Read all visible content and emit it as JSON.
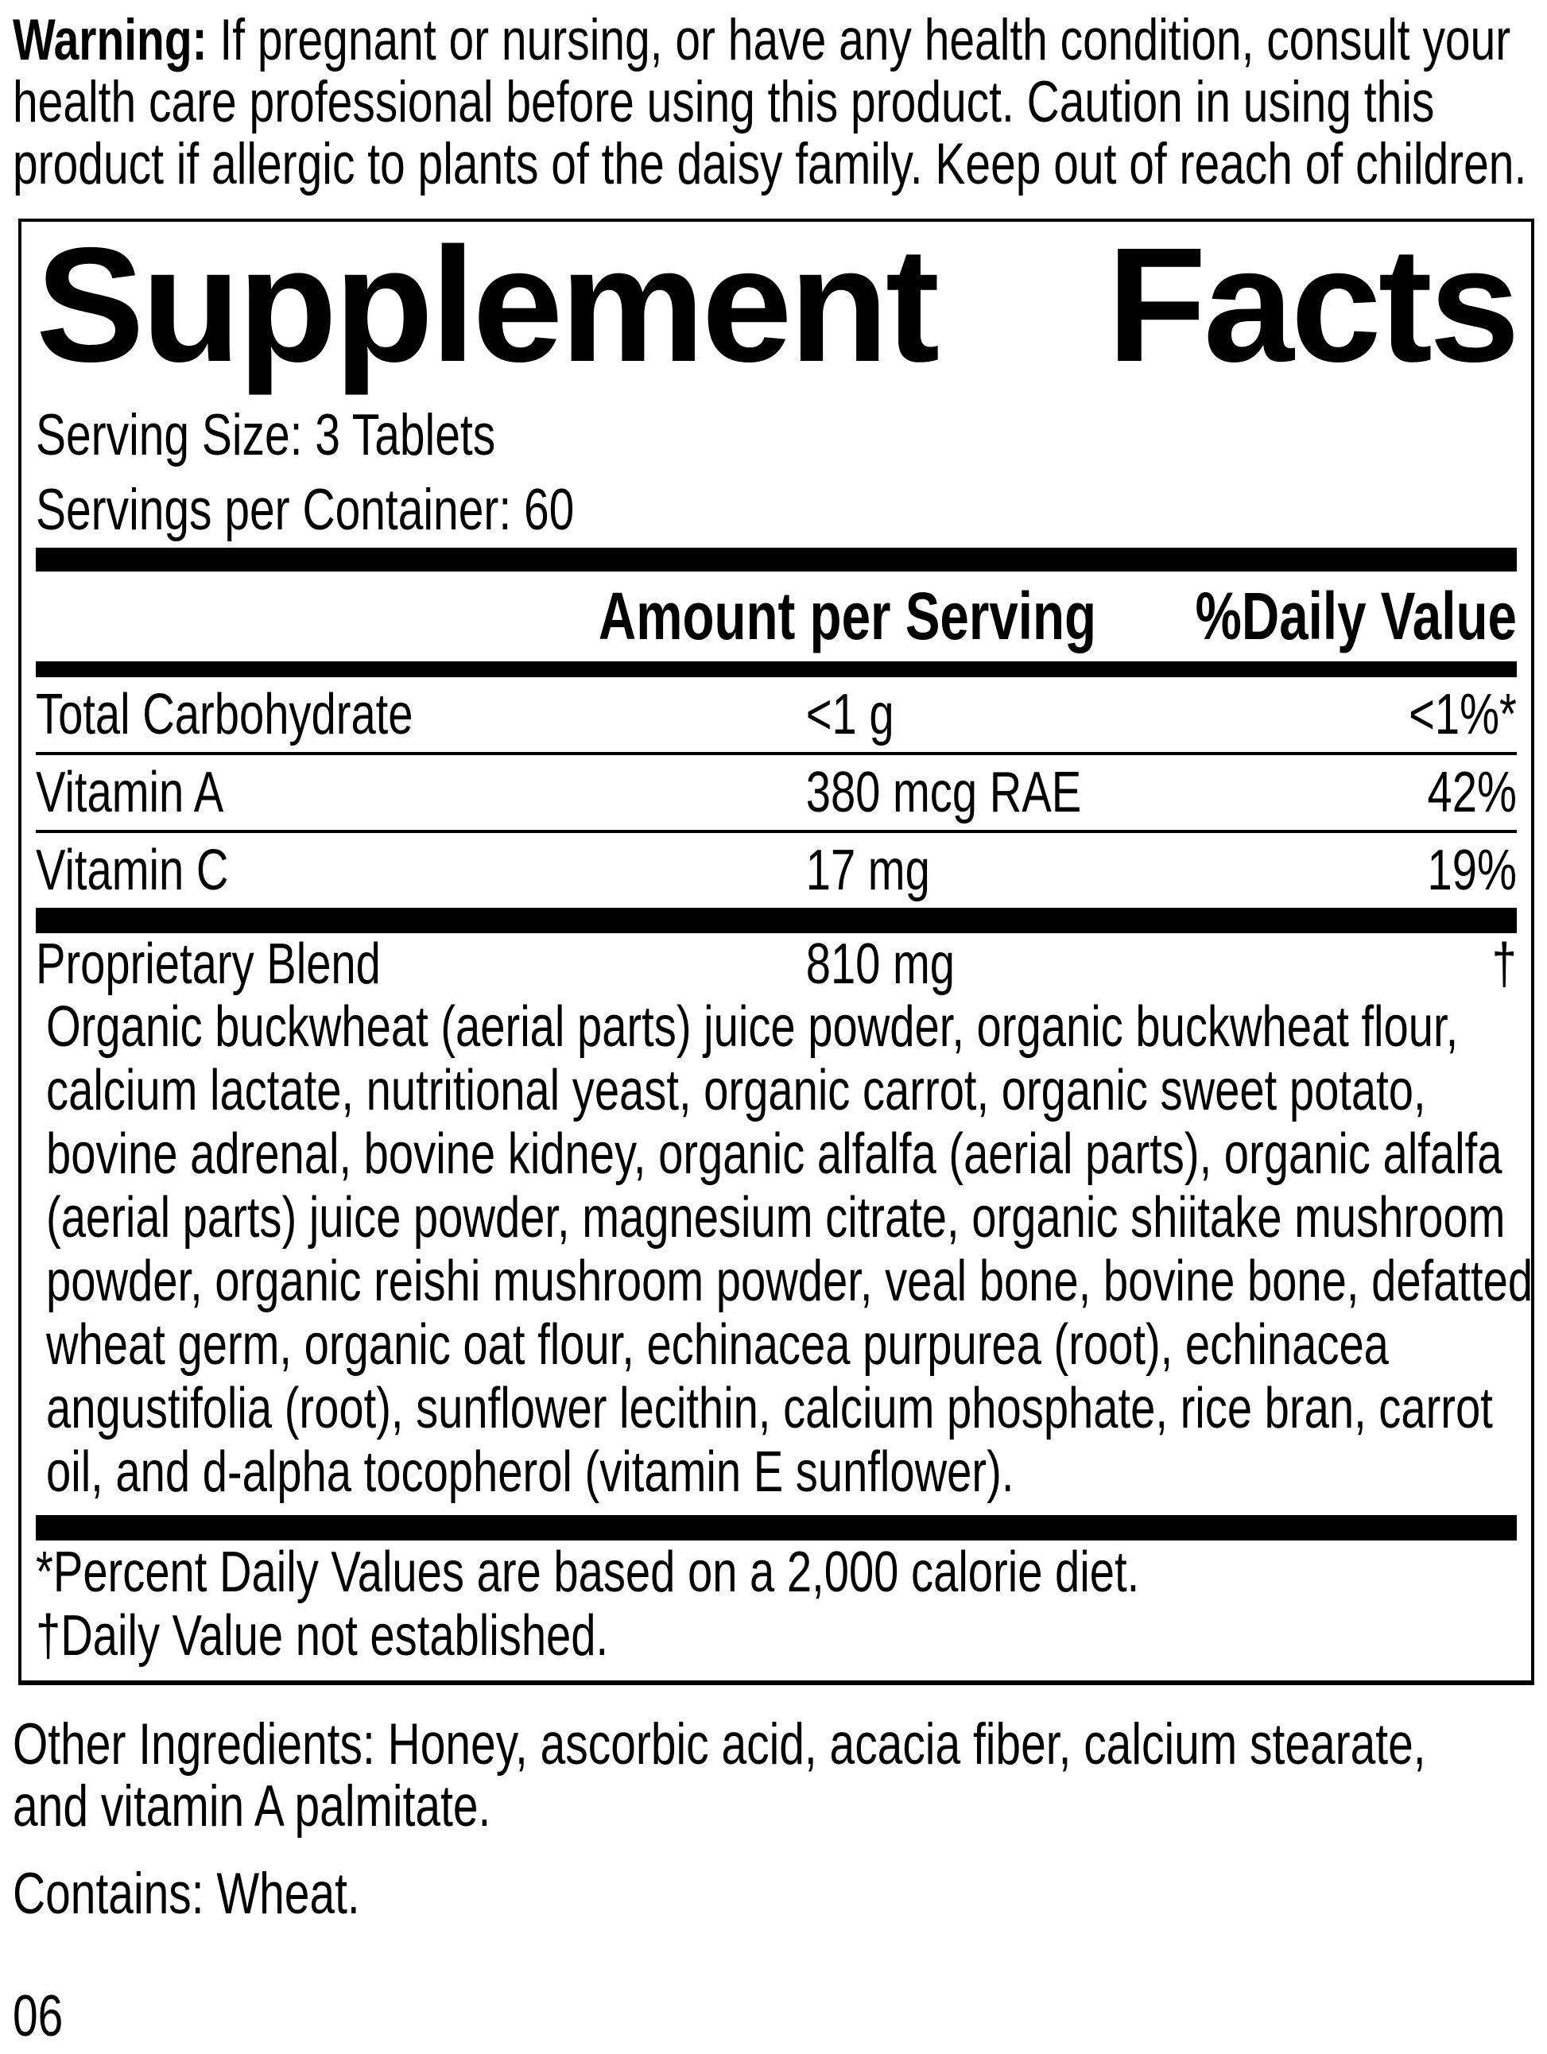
{
  "warning": {
    "label": "Warning:",
    "lines": [
      "If pregnant or nursing, or have any health condition, consult your",
      "health care professional before using this product. Caution in using this",
      "product if allergic to plants of the daisy family. Keep out of reach of children."
    ]
  },
  "panel": {
    "title": {
      "word1": "Supplement",
      "word2": "Facts"
    },
    "serving_size": "Serving Size: 3 Tablets",
    "servings_per_container": "Servings per Container: 60",
    "columns": {
      "amount": "Amount per Serving",
      "daily_value": "%Daily Value"
    },
    "nutrients": [
      {
        "name": "Total Carbohydrate",
        "amount": "<1 g",
        "dv": "<1%*"
      },
      {
        "name": "Vitamin A",
        "amount": "380 mcg RAE",
        "dv": "42%"
      },
      {
        "name": "Vitamin C",
        "amount": "17 mg",
        "dv": "19%"
      }
    ],
    "blend": {
      "name": "Proprietary Blend",
      "amount": "810 mg",
      "dv": "†",
      "ingredients_lines": [
        "Organic buckwheat (aerial parts) juice powder, organic buckwheat flour,",
        "calcium lactate, nutritional yeast, organic carrot, organic sweet potato,",
        "bovine adrenal, bovine kidney, organic alfalfa (aerial parts), organic alfalfa",
        "(aerial parts) juice powder, magnesium citrate, organic shiitake mushroom",
        "powder, organic reishi mushroom powder, veal bone, bovine bone, defatted",
        "wheat germ, organic oat flour, echinacea purpurea (root), echinacea",
        "angustifolia (root), sunflower lecithin, calcium phosphate, rice bran, carrot",
        "oil, and d-alpha tocopherol (vitamin E sunflower)."
      ]
    },
    "footnotes": [
      "*Percent Daily Values are based on a 2,000 calorie diet.",
      "†Daily Value not established."
    ]
  },
  "other_ingredients": {
    "lines": [
      "Other Ingredients: Honey, ascorbic acid, acacia fiber, calcium stearate,",
      "and vitamin A palmitate."
    ]
  },
  "contains": "Contains: Wheat.",
  "footer_code": "06",
  "colors": {
    "ink": "#000000",
    "paper": "#ffffff"
  }
}
